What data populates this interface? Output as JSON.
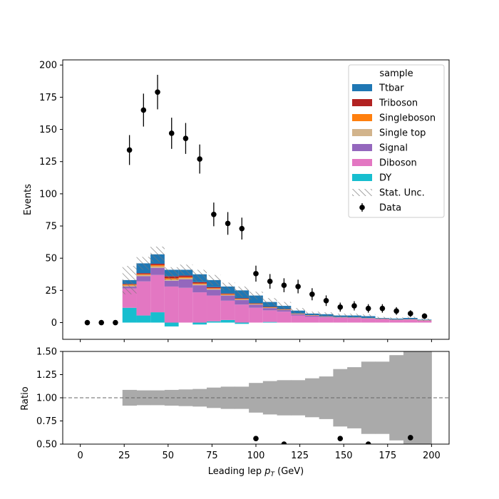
{
  "chart_data": {
    "type": "bar",
    "xlabel_prefix": "Leading lep ",
    "xlabel_var": "p",
    "xlabel_sub": "T",
    "xlabel_suffix": " (GeV)",
    "bin_edges": [
      0,
      8,
      16,
      24,
      32,
      40,
      48,
      56,
      64,
      72,
      80,
      88,
      96,
      104,
      112,
      120,
      128,
      136,
      144,
      152,
      160,
      168,
      176,
      184,
      192,
      200
    ],
    "top": {
      "ylabel": "Events",
      "xlim": [
        -10,
        210
      ],
      "ylim": [
        -13,
        204
      ],
      "yticks": [
        0,
        25,
        50,
        75,
        100,
        125,
        150,
        175,
        200
      ],
      "ytick_labels": [
        "0",
        "25",
        "50",
        "75",
        "100",
        "125",
        "150",
        "175",
        "200"
      ],
      "stack": [
        {
          "name": "DY",
          "color": "#17becf",
          "values": [
            0,
            0,
            0,
            11.5,
            5.5,
            8.0,
            -3.0,
            0,
            -1.5,
            1.0,
            2.0,
            -1.0,
            0,
            0.5,
            0,
            0,
            0,
            0,
            0,
            0,
            0,
            0,
            0,
            0,
            0
          ]
        },
        {
          "name": "Diboson",
          "color": "#e377c2",
          "values": [
            0,
            0,
            0,
            15.0,
            26.5,
            29.0,
            28.0,
            27.0,
            23.5,
            20.0,
            15.0,
            14.0,
            11.5,
            9.0,
            8.5,
            5.5,
            4.5,
            4.0,
            3.7,
            3.5,
            3.0,
            2.5,
            2.0,
            2.2,
            1.5
          ]
        },
        {
          "name": "Signal",
          "color": "#9467bd",
          "values": [
            0,
            0,
            0,
            1.5,
            4.0,
            5.5,
            4.5,
            6.5,
            5.5,
            4.5,
            4.0,
            3.5,
            2.5,
            1.8,
            1.2,
            1.0,
            0.8,
            0.5,
            0.3,
            0.3,
            0.2,
            0.2,
            0.1,
            0.1,
            0.1
          ]
        },
        {
          "name": "Single top",
          "color": "#d2b48c",
          "values": [
            0,
            0,
            0,
            0.8,
            1.0,
            1.2,
            1.0,
            1.0,
            0.8,
            0.7,
            0.6,
            0.5,
            0.4,
            0.3,
            0.3,
            0.2,
            0.2,
            0.2,
            0.1,
            0.1,
            0.1,
            0.1,
            0.1,
            0.1,
            0.1
          ]
        },
        {
          "name": "Singleboson",
          "color": "#ff7f0e",
          "values": [
            0,
            0,
            0,
            0.7,
            0.6,
            1.0,
            0.9,
            0.8,
            0.6,
            0.5,
            0.5,
            0.4,
            0.3,
            0.3,
            0.2,
            0.2,
            0.2,
            0.1,
            0.1,
            0.1,
            0.1,
            0.1,
            0.1,
            0.1,
            0.1
          ]
        },
        {
          "name": "Triboson",
          "color": "#b22222",
          "values": [
            0,
            0,
            0,
            0.5,
            0.8,
            1.0,
            1.5,
            1.2,
            1.0,
            0.8,
            0.5,
            0.5,
            0.3,
            0.3,
            0.3,
            0.2,
            0.1,
            0.1,
            0.1,
            0.1,
            0.1,
            0.1,
            0.1,
            0.1,
            0.1
          ]
        },
        {
          "name": "Ttbar",
          "color": "#1f77b4",
          "values": [
            0,
            0,
            0,
            3.0,
            7.6,
            7.3,
            5.1,
            4.5,
            6.1,
            5.5,
            5.4,
            6.1,
            6.0,
            3.8,
            2.5,
            2.2,
            1.2,
            1.6,
            1.2,
            1.4,
            1.5,
            0.5,
            0.7,
            1.0,
            0.4
          ]
        }
      ],
      "stat_unc_band": [
        0,
        0,
        0,
        11,
        5,
        6,
        5,
        4,
        5,
        4,
        3,
        4,
        3,
        3,
        3,
        2,
        1.5,
        1.5,
        1.5,
        1.5,
        1.5,
        1,
        1,
        1,
        1
      ],
      "data": {
        "name": "Data",
        "values": [
          0,
          0,
          0,
          134,
          165,
          179,
          147,
          143,
          127,
          84,
          77,
          73,
          38,
          32,
          29,
          28,
          22,
          17,
          12,
          13,
          11,
          11,
          9,
          7,
          5
        ],
        "errors": [
          0,
          0,
          0,
          11.6,
          12.8,
          13.4,
          12.1,
          12.0,
          11.3,
          9.2,
          8.8,
          8.5,
          6.2,
          5.7,
          5.4,
          5.3,
          4.7,
          4.1,
          3.5,
          3.6,
          3.3,
          3.3,
          3.0,
          2.6,
          2.2
        ]
      },
      "legend": {
        "title": "sample",
        "position": "upper right",
        "entries": [
          "Ttbar",
          "Triboson",
          "Singleboson",
          "Single top",
          "Signal",
          "Diboson",
          "DY",
          "Stat. Unc.",
          "Data"
        ]
      }
    },
    "bottom": {
      "ylabel": "Ratio",
      "xlim": [
        -10,
        210
      ],
      "ylim": [
        0.5,
        1.5
      ],
      "yticks": [
        0.5,
        0.75,
        1.0,
        1.25,
        1.5
      ],
      "ytick_labels": [
        "0.50",
        "0.75",
        "1.00",
        "1.25",
        "1.50"
      ],
      "xticks": [
        0,
        25,
        50,
        75,
        100,
        125,
        150,
        175,
        200
      ],
      "xtick_labels": [
        "0",
        "25",
        "50",
        "75",
        "100",
        "125",
        "150",
        "175",
        "200"
      ],
      "reference_line": 1.0,
      "unc_band_halfwidth": [
        0,
        0,
        0,
        0.085,
        0.08,
        0.08,
        0.085,
        0.09,
        0.095,
        0.11,
        0.12,
        0.12,
        0.16,
        0.18,
        0.19,
        0.19,
        0.21,
        0.23,
        0.31,
        0.33,
        0.39,
        0.39,
        0.46,
        0.52,
        0.52
      ],
      "ratio_points": [
        {
          "x": 100,
          "y": 0.56
        },
        {
          "x": 116,
          "y": 0.5
        },
        {
          "x": 148,
          "y": 0.56
        },
        {
          "x": 164,
          "y": 0.5
        },
        {
          "x": 188,
          "y": 0.57
        }
      ]
    }
  }
}
